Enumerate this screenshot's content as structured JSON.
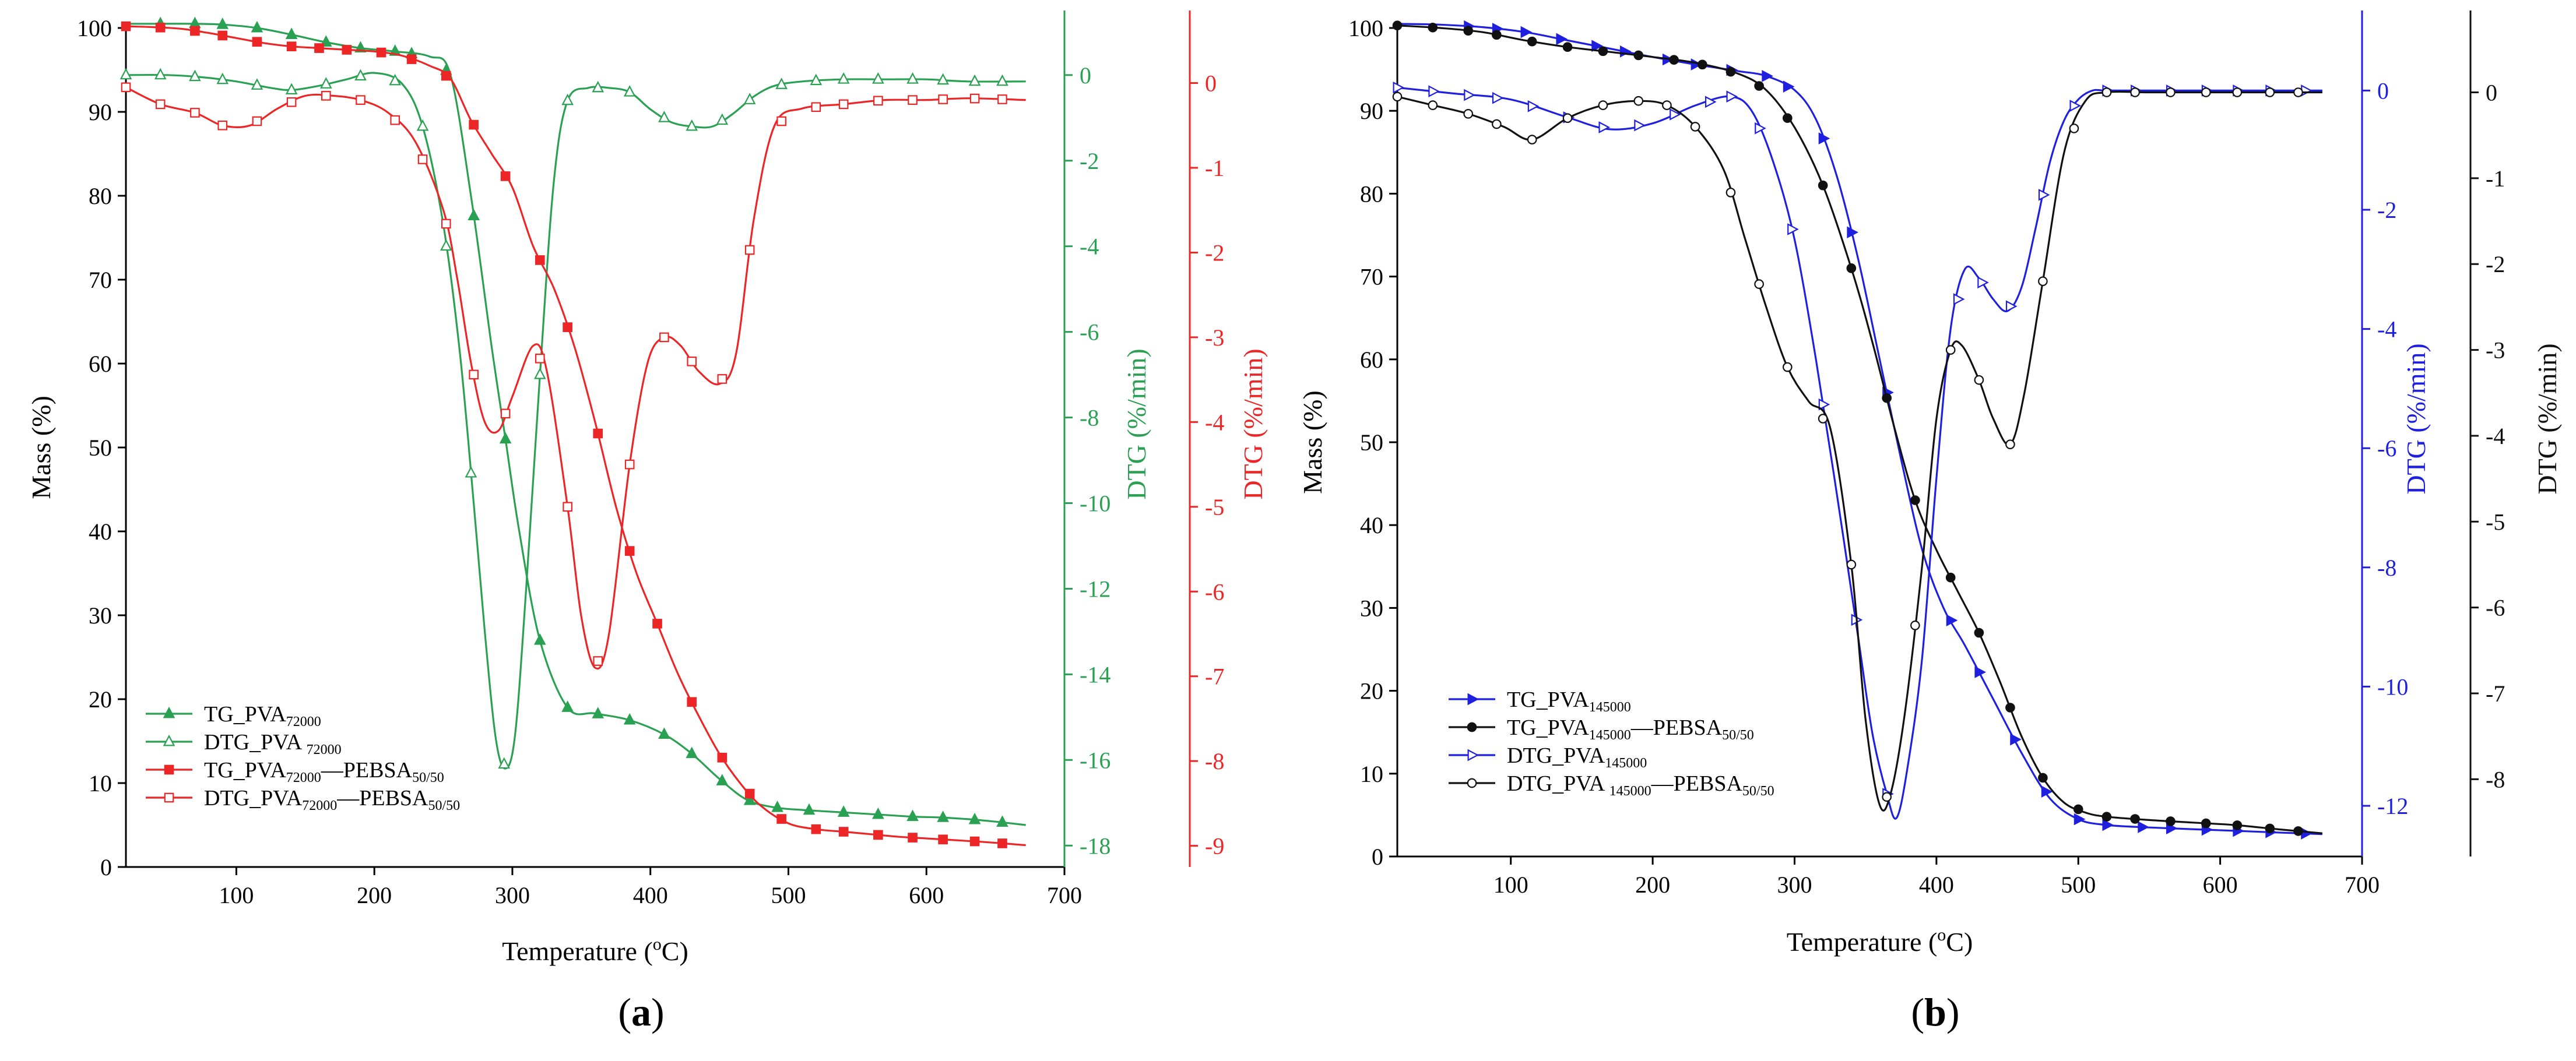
{
  "chart_data": [
    {
      "panel_label": "a",
      "type": "line",
      "xlabel": "Temperature (",
      "xlabel_sup": "o",
      "xlabel_end": "C)",
      "xlim": [
        20,
        700
      ],
      "xticks": [
        100,
        200,
        300,
        400,
        500,
        600,
        700
      ],
      "ylabel": "Mass (%)",
      "ylim": [
        0,
        100
      ],
      "yticks": [
        0,
        10,
        20,
        30,
        40,
        50,
        60,
        70,
        80,
        90,
        100
      ],
      "axes": {
        "green": {
          "label": "DTG (%/min)",
          "color": "#2aa052",
          "lim": [
            -18.5,
            1.1
          ],
          "ticks": [
            -18,
            -16,
            -14,
            -12,
            -10,
            -8,
            -6,
            -4,
            -2,
            0
          ]
        },
        "red": {
          "label": "DTG (%/min)",
          "color": "#ec2626",
          "lim": [
            -9.25,
            0.65
          ],
          "ticks": [
            -9,
            -8,
            -7,
            -6,
            -5,
            -4,
            -3,
            -2,
            -1,
            0
          ]
        }
      },
      "series": [
        {
          "name": "TG_PVA",
          "sub": "72000",
          "sub2": "",
          "axis": "left",
          "color": "#2aa052",
          "marker": "triangle",
          "filled": true,
          "x": [
            20,
            45,
            70,
            90,
            115,
            140,
            165,
            190,
            215,
            240,
            255,
            270,
            285,
            295,
            305,
            320,
            340,
            360,
            385,
            410,
            430,
            450,
            470,
            490,
            510,
            530,
            550,
            570,
            590,
            610,
            630,
            650,
            672
          ],
          "y": [
            100.5,
            100.5,
            100.5,
            100.4,
            100,
            99.2,
            98.3,
            97.6,
            97.2,
            96.6,
            94.5,
            80,
            62,
            51,
            40,
            27,
            19,
            18.3,
            17.5,
            15.8,
            13.5,
            10.5,
            8,
            7.1,
            6.8,
            6.6,
            6.4,
            6.2,
            6.0,
            5.9,
            5.7,
            5.4,
            5.0
          ],
          "markers": [
            45,
            70,
            90,
            115,
            140,
            165,
            190,
            215,
            227,
            252,
            272,
            295,
            320,
            340,
            362,
            385,
            410,
            430,
            452,
            472,
            492,
            515,
            540,
            565,
            590,
            612,
            635,
            655
          ]
        },
        {
          "name": "DTG_PVA ",
          "sub": "72000",
          "sub2": "",
          "axis": "green",
          "color": "#2aa052",
          "marker": "triangle",
          "filled": false,
          "x": [
            20,
            50,
            75,
            100,
            125,
            140,
            160,
            180,
            200,
            220,
            235,
            250,
            262,
            272,
            280,
            288,
            295,
            302,
            310,
            320,
            330,
            340,
            355,
            370,
            385,
            400,
            415,
            430,
            445,
            460,
            475,
            490,
            510,
            540,
            570,
            600,
            630,
            672
          ],
          "y": [
            0,
            0,
            -0.05,
            -0.15,
            -0.3,
            -0.35,
            -0.25,
            -0.1,
            0.05,
            -0.2,
            -1.2,
            -3.5,
            -6.5,
            -10,
            -13,
            -15.5,
            -16.2,
            -15.4,
            -12,
            -7,
            -2.5,
            -0.6,
            -0.3,
            -0.3,
            -0.4,
            -0.8,
            -1.1,
            -1.2,
            -1.2,
            -0.9,
            -0.5,
            -0.25,
            -0.15,
            -0.1,
            -0.1,
            -0.1,
            -0.15,
            -0.15
          ],
          "markers": [
            20,
            45,
            70,
            90,
            115,
            140,
            165,
            190,
            215,
            235,
            252,
            270,
            294,
            320,
            340,
            362,
            385,
            410,
            430,
            452,
            472,
            495,
            520,
            540,
            565,
            590,
            612,
            635,
            655
          ]
        },
        {
          "name": "TG_PVA",
          "sub": "72000",
          "sub2": "50/50",
          "axis": "left",
          "color": "#ec2626",
          "marker": "square",
          "filled": true,
          "x": [
            20,
            40,
            60,
            80,
            100,
            120,
            140,
            160,
            180,
            200,
            220,
            240,
            255,
            270,
            285,
            300,
            315,
            330,
            345,
            360,
            375,
            390,
            405,
            420,
            435,
            450,
            465,
            480,
            500,
            520,
            540,
            560,
            580,
            600,
            620,
            640,
            672
          ],
          "y": [
            100.2,
            100.1,
            99.9,
            99.4,
            98.8,
            98.2,
            97.8,
            97.6,
            97.4,
            97.2,
            96.7,
            95.5,
            94,
            89,
            85,
            81,
            74,
            69,
            62,
            53,
            43,
            35,
            29,
            23,
            18,
            13.5,
            10,
            7.3,
            5.2,
            4.5,
            4.2,
            3.9,
            3.6,
            3.4,
            3.2,
            3.0,
            2.6
          ],
          "markers": [
            20,
            45,
            70,
            90,
            115,
            140,
            160,
            180,
            205,
            227,
            252,
            272,
            295,
            320,
            340,
            362,
            385,
            405,
            430,
            452,
            472,
            495,
            520,
            540,
            565,
            590,
            612,
            635,
            655
          ]
        },
        {
          "name": "DTG_PVA",
          "sub": "72000",
          "sub2": "50/50",
          "axis": "red",
          "color": "#ec2626",
          "marker": "square",
          "filled": false,
          "x": [
            20,
            45,
            70,
            90,
            110,
            130,
            150,
            170,
            190,
            210,
            230,
            250,
            260,
            270,
            280,
            290,
            300,
            315,
            325,
            340,
            350,
            360,
            370,
            385,
            398,
            410,
            422,
            435,
            450,
            462,
            475,
            490,
            510,
            540,
            570,
            600,
            630,
            672
          ],
          "y": [
            -0.05,
            -0.25,
            -0.35,
            -0.5,
            -0.5,
            -0.3,
            -0.15,
            -0.15,
            -0.2,
            -0.35,
            -0.7,
            -1.5,
            -2.3,
            -3.3,
            -4,
            -4.1,
            -3.7,
            -3.1,
            -3.4,
            -5,
            -6.3,
            -6.9,
            -6.5,
            -4.5,
            -3.3,
            -3.0,
            -3.1,
            -3.4,
            -3.55,
            -3.2,
            -1.6,
            -0.5,
            -0.3,
            -0.25,
            -0.2,
            -0.2,
            -0.18,
            -0.2
          ],
          "markers": [
            20,
            45,
            70,
            90,
            115,
            140,
            165,
            190,
            215,
            235,
            252,
            272,
            295,
            320,
            340,
            362,
            385,
            410,
            430,
            452,
            472,
            495,
            520,
            540,
            565,
            590,
            612,
            635,
            655
          ]
        }
      ]
    },
    {
      "panel_label": "b",
      "type": "line",
      "xlabel": "Temperature (",
      "xlabel_sup": "o",
      "xlabel_end": "C)",
      "xlim": [
        20,
        700
      ],
      "xticks": [
        100,
        200,
        300,
        400,
        500,
        600,
        700
      ],
      "ylabel": "Mass (%)",
      "ylim": [
        0,
        100
      ],
      "yticks": [
        0,
        10,
        20,
        30,
        40,
        50,
        60,
        70,
        80,
        90,
        100
      ],
      "axes": {
        "blue": {
          "label": "DTG (%/min)",
          "color": "#1f1fe0",
          "lim": [
            -12.85,
            1.05
          ],
          "ticks": [
            -12,
            -10,
            -8,
            -6,
            -4,
            -2,
            0
          ]
        },
        "black": {
          "label": "DTG (%/min)",
          "color": "#111111",
          "lim": [
            -8.9,
            0.75
          ],
          "ticks": [
            -8,
            -7,
            -6,
            -5,
            -4,
            -3,
            -2,
            -1,
            0
          ]
        }
      },
      "series": [
        {
          "name": "TG_PVA",
          "sub": "145000",
          "sub2": "",
          "axis": "left",
          "color": "#1f1fe0",
          "marker": "triangle-right",
          "filled": true,
          "x": [
            20,
            50,
            80,
            110,
            140,
            170,
            200,
            230,
            260,
            280,
            300,
            315,
            330,
            345,
            360,
            375,
            390,
            405,
            420,
            440,
            460,
            480,
            500,
            520,
            550,
            580,
            610,
            640,
            672
          ],
          "y": [
            100.5,
            100.4,
            100.1,
            99.5,
            98.5,
            97.5,
            96.5,
            95.6,
            94.8,
            94.2,
            92.5,
            89,
            82,
            72,
            60,
            48,
            37,
            30,
            25.5,
            19,
            12.5,
            7,
            4.5,
            3.8,
            3.5,
            3.3,
            3.1,
            2.9,
            2.7
          ],
          "markers": [
            70,
            90,
            110,
            135,
            160,
            180,
            210,
            230,
            255,
            280,
            295,
            320,
            340,
            365,
            410,
            430,
            455,
            477,
            500,
            520,
            545,
            565,
            590,
            612,
            635,
            660
          ]
        },
        {
          "name": "TG_PVA",
          "sub": "145000",
          "sub2": "50/50",
          "axis": "left",
          "color": "#111111",
          "marker": "circle",
          "filled": true,
          "x": [
            20,
            50,
            80,
            110,
            140,
            170,
            200,
            230,
            260,
            280,
            300,
            320,
            340,
            355,
            370,
            385,
            400,
            415,
            430,
            445,
            460,
            475,
            490,
            505,
            520,
            550,
            580,
            610,
            640,
            672
          ],
          "y": [
            100.3,
            100,
            99.5,
            98.5,
            97.7,
            97.1,
            96.5,
            95.8,
            94.5,
            92.5,
            88,
            81,
            71,
            62,
            52,
            43,
            37,
            32,
            27,
            21,
            14.5,
            9.5,
            6.5,
            5.3,
            4.8,
            4.4,
            4.1,
            3.8,
            3.3,
            2.8
          ],
          "markers": [
            20,
            45,
            70,
            90,
            115,
            140,
            165,
            190,
            215,
            235,
            255,
            275,
            295,
            320,
            340,
            365,
            385,
            410,
            430,
            452,
            475,
            500,
            520,
            540,
            565,
            590,
            612,
            635,
            655
          ]
        },
        {
          "name": "DTG_PVA",
          "sub": "145000",
          "sub2": "",
          "axis": "blue",
          "color": "#1f1fe0",
          "marker": "triangle-right",
          "filled": false,
          "x": [
            20,
            60,
            100,
            140,
            170,
            200,
            230,
            255,
            270,
            285,
            300,
            315,
            330,
            345,
            355,
            365,
            372,
            380,
            390,
            400,
            410,
            420,
            430,
            440,
            450,
            460,
            470,
            480,
            490,
            500,
            510,
            520,
            550,
            580,
            610,
            640,
            672
          ],
          "y": [
            0.05,
            -0.05,
            -0.15,
            -0.45,
            -0.65,
            -0.55,
            -0.25,
            -0.1,
            -0.35,
            -1.2,
            -2.5,
            -4.5,
            -6.8,
            -9.2,
            -10.8,
            -11.8,
            -12.2,
            -11.3,
            -9.5,
            -6.5,
            -4.0,
            -3.0,
            -3.15,
            -3.5,
            -3.7,
            -3.3,
            -2.3,
            -1.2,
            -0.5,
            -0.15,
            0,
            0,
            0,
            0,
            0,
            0,
            0
          ],
          "markers": [
            20,
            45,
            70,
            90,
            115,
            140,
            165,
            190,
            215,
            240,
            255,
            275,
            298,
            320,
            343,
            365,
            415,
            432,
            452,
            475,
            497,
            520,
            540,
            565,
            590,
            612,
            635,
            660
          ]
        },
        {
          "name": "DTG_PVA ",
          "sub": "145000",
          "sub2": "50/50",
          "axis": "black",
          "color": "#111111",
          "marker": "circle",
          "filled": false,
          "x": [
            20,
            45,
            70,
            95,
            115,
            140,
            165,
            190,
            210,
            230,
            250,
            265,
            280,
            295,
            310,
            325,
            340,
            350,
            360,
            368,
            378,
            390,
            400,
            410,
            418,
            430,
            440,
            452,
            462,
            475,
            490,
            505,
            520,
            550,
            580,
            610,
            640,
            672
          ],
          "y": [
            -0.05,
            -0.15,
            -0.25,
            -0.4,
            -0.55,
            -0.3,
            -0.15,
            -0.1,
            -0.15,
            -0.4,
            -0.9,
            -1.7,
            -2.5,
            -3.2,
            -3.6,
            -3.9,
            -5.5,
            -7.3,
            -8.3,
            -8.15,
            -7.2,
            -5.5,
            -3.8,
            -3.0,
            -2.95,
            -3.35,
            -3.8,
            -4.1,
            -3.5,
            -2.2,
            -0.7,
            -0.1,
            0,
            0,
            0,
            0,
            0,
            0
          ],
          "markers": [
            20,
            45,
            70,
            90,
            115,
            140,
            165,
            190,
            210,
            230,
            255,
            275,
            295,
            320,
            340,
            365,
            385,
            410,
            430,
            452,
            475,
            497,
            520,
            540,
            565,
            590,
            612,
            635,
            655
          ]
        }
      ]
    }
  ]
}
